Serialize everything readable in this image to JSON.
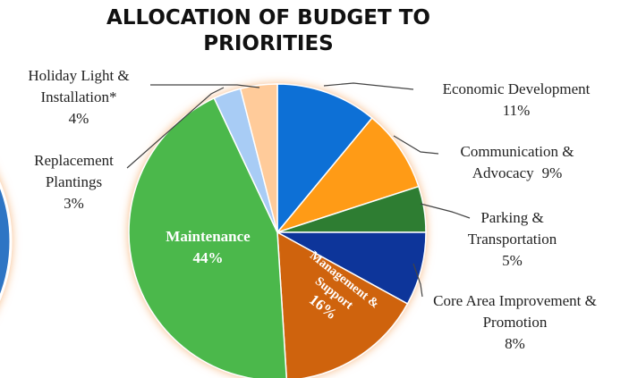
{
  "chart_data": {
    "type": "pie",
    "title": "ALLOCATION OF BUDGET TO PRIORITIES",
    "categories": [
      "Economic Development",
      "Communication & Advocacy",
      "Parking & Transportation",
      "Core Area Improvement & Promotion",
      "Management & Support",
      "Maintenance",
      "Replacement Plantings",
      "Holiday Light & Installation*"
    ],
    "values": [
      11,
      9,
      5,
      8,
      16,
      44,
      3,
      4
    ],
    "value_labels": [
      "11%",
      "9%",
      "5%",
      "8%",
      "16%",
      "44%",
      "3%",
      "4%"
    ],
    "colors": [
      "#0f6fd6",
      "#ff9b12",
      "#2e7d32",
      "#08349a",
      "#cf6310",
      "#4cb84c",
      "#a8ccf5",
      "#ffcb9a"
    ]
  }
}
